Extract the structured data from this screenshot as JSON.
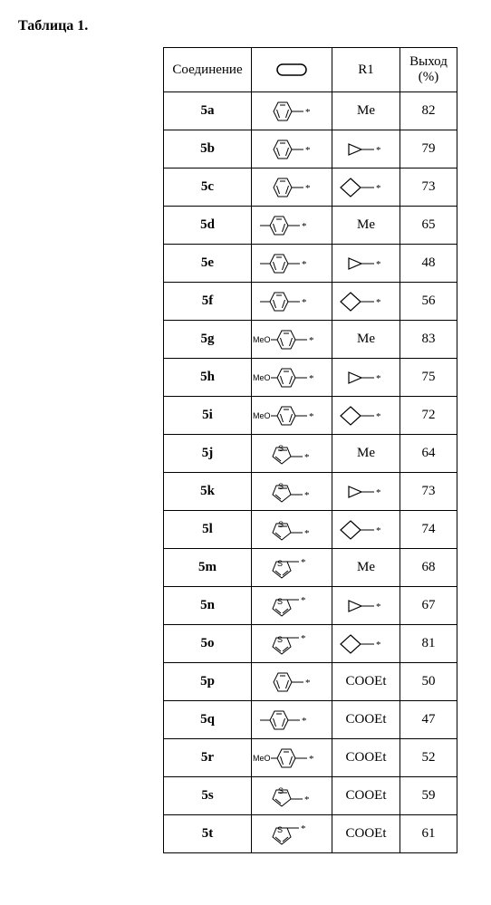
{
  "table": {
    "title": "Таблица 1.",
    "columns": [
      "Соединение",
      "HEADER_ICON",
      "R1",
      "Выход (%)"
    ],
    "rows": [
      {
        "id": "5a",
        "aryl": "phenyl",
        "r1": "Me",
        "yield": 82
      },
      {
        "id": "5b",
        "aryl": "phenyl",
        "r1": "cyclopropyl",
        "yield": 79
      },
      {
        "id": "5c",
        "aryl": "phenyl",
        "r1": "cyclobutyl",
        "yield": 73
      },
      {
        "id": "5d",
        "aryl": "p-tolyl",
        "r1": "Me",
        "yield": 65
      },
      {
        "id": "5e",
        "aryl": "p-tolyl",
        "r1": "cyclopropyl",
        "yield": 48
      },
      {
        "id": "5f",
        "aryl": "p-tolyl",
        "r1": "cyclobutyl",
        "yield": 56
      },
      {
        "id": "5g",
        "aryl": "p-methoxyphenyl",
        "r1": "Me",
        "yield": 83
      },
      {
        "id": "5h",
        "aryl": "p-methoxyphenyl",
        "r1": "cyclopropyl",
        "yield": 75
      },
      {
        "id": "5i",
        "aryl": "p-methoxyphenyl",
        "r1": "cyclobutyl",
        "yield": 72
      },
      {
        "id": "5j",
        "aryl": "2-thienyl",
        "r1": "Me",
        "yield": 64
      },
      {
        "id": "5k",
        "aryl": "2-thienyl",
        "r1": "cyclopropyl",
        "yield": 73
      },
      {
        "id": "5l",
        "aryl": "2-thienyl",
        "r1": "cyclobutyl",
        "yield": 74
      },
      {
        "id": "5m",
        "aryl": "3-thienyl",
        "r1": "Me",
        "yield": 68
      },
      {
        "id": "5n",
        "aryl": "3-thienyl",
        "r1": "cyclopropyl",
        "yield": 67
      },
      {
        "id": "5o",
        "aryl": "3-thienyl",
        "r1": "cyclobutyl",
        "yield": 81
      },
      {
        "id": "5p",
        "aryl": "phenyl",
        "r1": "COOEt",
        "yield": 50
      },
      {
        "id": "5q",
        "aryl": "p-tolyl",
        "r1": "COOEt",
        "yield": 47
      },
      {
        "id": "5r",
        "aryl": "p-methoxyphenyl",
        "r1": "COOEt",
        "yield": 52
      },
      {
        "id": "5s",
        "aryl": "2-thienyl",
        "r1": "COOEt",
        "yield": 59
      },
      {
        "id": "5t",
        "aryl": "3-thienyl",
        "r1": "COOEt",
        "yield": 61
      }
    ],
    "struct_svg": {
      "phenyl": "<svg width='70' height='30' viewBox='0 0 70 30'><g fill='none' stroke='#000' stroke-width='1'><polygon points='20,5 30,5 35,15 30,25 20,25 15,15'/><line x1='22' y1='8' x2='28' y2='8'/><line x1='31.5' y1='13' x2='28.5' y2='22'/><line x1='18.5' y1='13' x2='21.5' y2='22'/></g><line x1='35' y1='15' x2='48' y2='15' stroke='#000' stroke-width='1'/><text x='50' y='19' font-size='11' font-family='serif'>*</text></svg>",
      "p-tolyl": "<svg width='78' height='30' viewBox='0 0 78 30'><line x1='4' y1='15' x2='15' y2='15' stroke='#000' stroke-width='1'/><g fill='none' stroke='#000' stroke-width='1'><polygon points='20,5 30,5 35,15 30,25 20,25 15,15'/><line x1='22' y1='8' x2='28' y2='8'/><line x1='31.5' y1='13' x2='28.5' y2='22'/><line x1='18.5' y1='13' x2='21.5' y2='22'/></g><line x1='35' y1='15' x2='48' y2='15' stroke='#000' stroke-width='1'/><text x='50' y='19' font-size='11' font-family='serif'>*</text></svg>",
      "p-methoxyphenyl": "<svg width='86' height='30' viewBox='0 0 86 30'><text x='0' y='18' font-size='9' font-family='sans-serif'>MeO</text><line x1='20' y1='15' x2='27' y2='15' stroke='#000' stroke-width='1'/><g fill='none' stroke='#000' stroke-width='1'><polygon points='32,5 42,5 47,15 42,25 32,25 27,15'/><line x1='34' y1='8' x2='40' y2='8'/><line x1='43.5' y1='13' x2='40.5' y2='22'/><line x1='30.5' y1='13' x2='33.5' y2='22'/></g><line x1='47' y1='15' x2='60' y2='15' stroke='#000' stroke-width='1'/><text x='62' y='19' font-size='11' font-family='serif'>*</text></svg>",
      "2-thienyl": "<svg width='70' height='30' viewBox='0 0 70 30'><g fill='none' stroke='#000' stroke-width='1'><polygon points='18,8 30,8 34,18 24,26 14,18'/><line x1='30' y1='11' x2='20' y2='11'/><line x1='17' y1='18' x2='23' y2='23'/></g><text x='20' y='12' font-size='9' font-family='sans-serif'>S</text><line x1='34' y1='18' x2='47' y2='18' stroke='#000' stroke-width='1'/><text x='49' y='22' font-size='11' font-family='serif'>*</text></svg>",
      "3-thienyl": "<svg width='70' height='30' viewBox='0 0 70 30'><g fill='none' stroke='#000' stroke-width='1'><polygon points='18,8 30,8 34,18 24,26 14,18'/><line x1='17' y1='18' x2='23' y2='23'/><line x1='31' y1='18' x2='25' y2='23'/></g><text x='19' y='13' font-size='9' font-family='sans-serif'>S</text><line x1='30' y1='8' x2='43' y2='8' stroke='#000' stroke-width='1'/><text x='45' y='12' font-size='11' font-family='serif'>*</text></svg>"
    },
    "r1_svg": {
      "cyclopropyl": "<svg width='58' height='24' viewBox='0 0 58 24'><g fill='none' stroke='#000' stroke-width='1.2'><polygon points='10,6 10,18 24,12'/></g><line x1='24' y1='12' x2='38' y2='12' stroke='#000' stroke-width='1'/><text x='40' y='16' font-size='11' font-family='serif'>*</text></svg>",
      "cyclobutyl": "<svg width='62' height='26' viewBox='0 0 62 26'><g fill='none' stroke='#000' stroke-width='1.2'><polygon points='14,3 25,13 14,23 3,13'/></g><line x1='25' y1='13' x2='40' y2='13' stroke='#000' stroke-width='1'/><text x='42' y='17' font-size='11' font-family='serif'>*</text></svg>"
    },
    "header_icon_svg": "<svg width='40' height='18' viewBox='0 0 40 18'><rect x='4' y='3' width='32' height='12' rx='6' ry='6' fill='none' stroke='#000' stroke-width='1.5'/></svg>"
  }
}
